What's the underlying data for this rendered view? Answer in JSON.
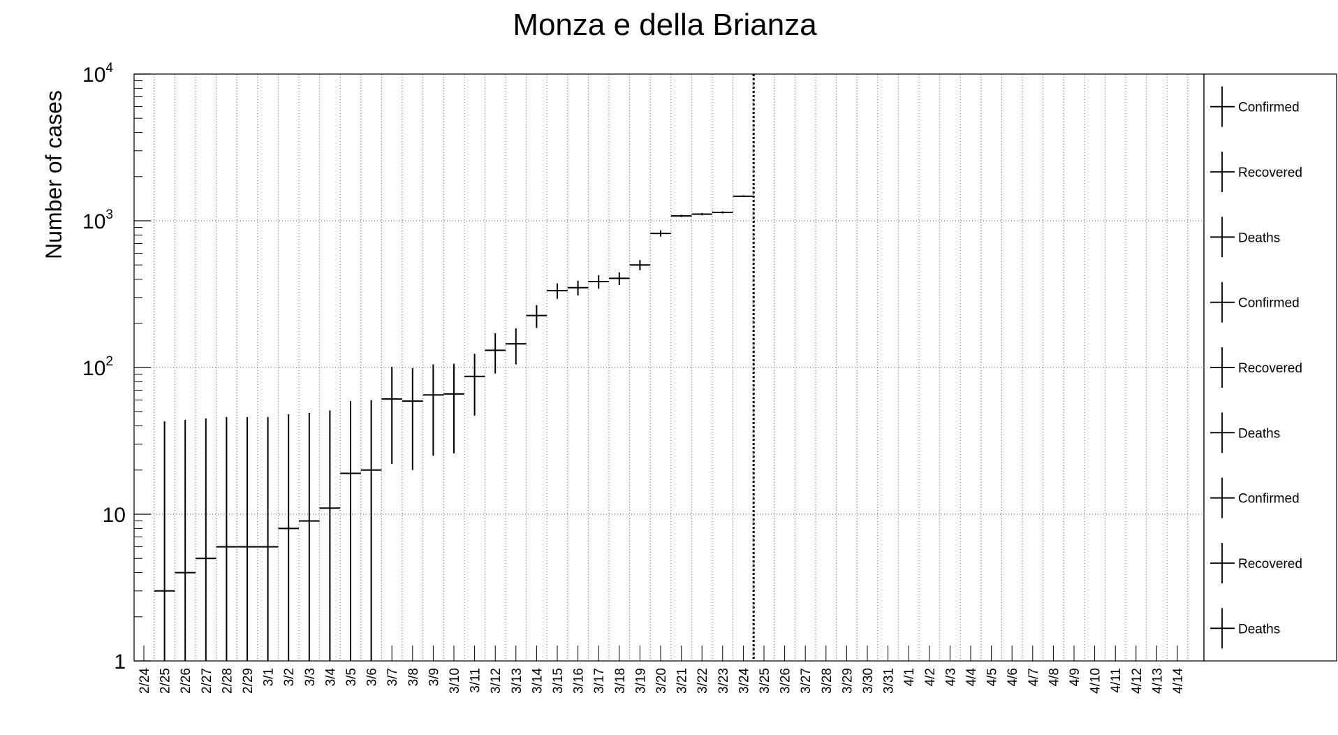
{
  "chart_data": {
    "type": "scatter",
    "title": "Monza e della Brianza",
    "xlabel": "",
    "ylabel": "Number of cases",
    "y_scale": "log",
    "ylim": [
      1,
      10000
    ],
    "y_ticks": [
      {
        "base": "1",
        "exp": ""
      },
      {
        "base": "10",
        "exp": ""
      },
      {
        "base": "10",
        "exp": "2"
      },
      {
        "base": "10",
        "exp": "3"
      },
      {
        "base": "10",
        "exp": "4"
      }
    ],
    "grid": true,
    "legend_position": "right",
    "legend": [
      "Confirmed",
      "Recovered",
      "Deaths",
      "Confirmed",
      "Recovered",
      "Deaths",
      "Confirmed",
      "Recovered",
      "Deaths"
    ],
    "categories": [
      "2/24",
      "2/25",
      "2/26",
      "2/27",
      "2/28",
      "2/29",
      "3/1",
      "3/2",
      "3/3",
      "3/4",
      "3/5",
      "3/6",
      "3/7",
      "3/8",
      "3/9",
      "3/10",
      "3/11",
      "3/12",
      "3/13",
      "3/14",
      "3/15",
      "3/16",
      "3/17",
      "3/18",
      "3/19",
      "3/20",
      "3/21",
      "3/22",
      "3/23",
      "3/24",
      "3/25",
      "3/26",
      "3/27",
      "3/28",
      "3/29",
      "3/30",
      "3/31",
      "4/1",
      "4/2",
      "4/3",
      "4/4",
      "4/5",
      "4/6",
      "4/7",
      "4/8",
      "4/9",
      "4/10",
      "4/11",
      "4/12",
      "4/13",
      "4/14"
    ],
    "marker_line_after": "3/24",
    "series": [
      {
        "name": "Confirmed",
        "points": [
          {
            "x": "2/25",
            "y": 3,
            "err_high": 43,
            "err_low": 1
          },
          {
            "x": "2/26",
            "y": 4,
            "err_high": 44,
            "err_low": 1
          },
          {
            "x": "2/27",
            "y": 5,
            "err_high": 45,
            "err_low": 1
          },
          {
            "x": "2/28",
            "y": 6,
            "err_high": 46,
            "err_low": 1
          },
          {
            "x": "2/29",
            "y": 6,
            "err_high": 46,
            "err_low": 1
          },
          {
            "x": "3/1",
            "y": 6,
            "err_high": 46,
            "err_low": 1
          },
          {
            "x": "3/2",
            "y": 8,
            "err_high": 48,
            "err_low": 1
          },
          {
            "x": "3/3",
            "y": 9,
            "err_high": 49,
            "err_low": 1
          },
          {
            "x": "3/4",
            "y": 11,
            "err_high": 51,
            "err_low": 1
          },
          {
            "x": "3/5",
            "y": 19,
            "err_high": 59,
            "err_low": 1
          },
          {
            "x": "3/6",
            "y": 20,
            "err_high": 60,
            "err_low": 1
          },
          {
            "x": "3/7",
            "y": 61,
            "err_high": 101,
            "err_low": 22
          },
          {
            "x": "3/8",
            "y": 59,
            "err_high": 99,
            "err_low": 20
          },
          {
            "x": "3/9",
            "y": 65,
            "err_high": 105,
            "err_low": 25
          },
          {
            "x": "3/10",
            "y": 66,
            "err_high": 106,
            "err_low": 26
          },
          {
            "x": "3/11",
            "y": 87,
            "err_high": 124,
            "err_low": 47
          },
          {
            "x": "3/12",
            "y": 131,
            "err_high": 171,
            "err_low": 91
          },
          {
            "x": "3/13",
            "y": 145,
            "err_high": 185,
            "err_low": 105
          },
          {
            "x": "3/14",
            "y": 226,
            "err_high": 266,
            "err_low": 186
          },
          {
            "x": "3/15",
            "y": 334,
            "err_high": 374,
            "err_low": 294
          },
          {
            "x": "3/16",
            "y": 350,
            "err_high": 390,
            "err_low": 310
          },
          {
            "x": "3/17",
            "y": 385,
            "err_high": 425,
            "err_low": 345
          },
          {
            "x": "3/18",
            "y": 405,
            "err_high": 445,
            "err_low": 365
          },
          {
            "x": "3/19",
            "y": 500,
            "err_high": 540,
            "err_low": 460
          },
          {
            "x": "3/20",
            "y": 820,
            "err_high": 860,
            "err_low": 780
          },
          {
            "x": "3/21",
            "y": 1080,
            "err_high": 1100,
            "err_low": 1060
          },
          {
            "x": "3/22",
            "y": 1110,
            "err_high": 1130,
            "err_low": 1090
          },
          {
            "x": "3/23",
            "y": 1140,
            "err_high": 1160,
            "err_low": 1120
          },
          {
            "x": "3/24",
            "y": 1470,
            "err_high": 1490,
            "err_low": 1450
          }
        ]
      }
    ]
  }
}
